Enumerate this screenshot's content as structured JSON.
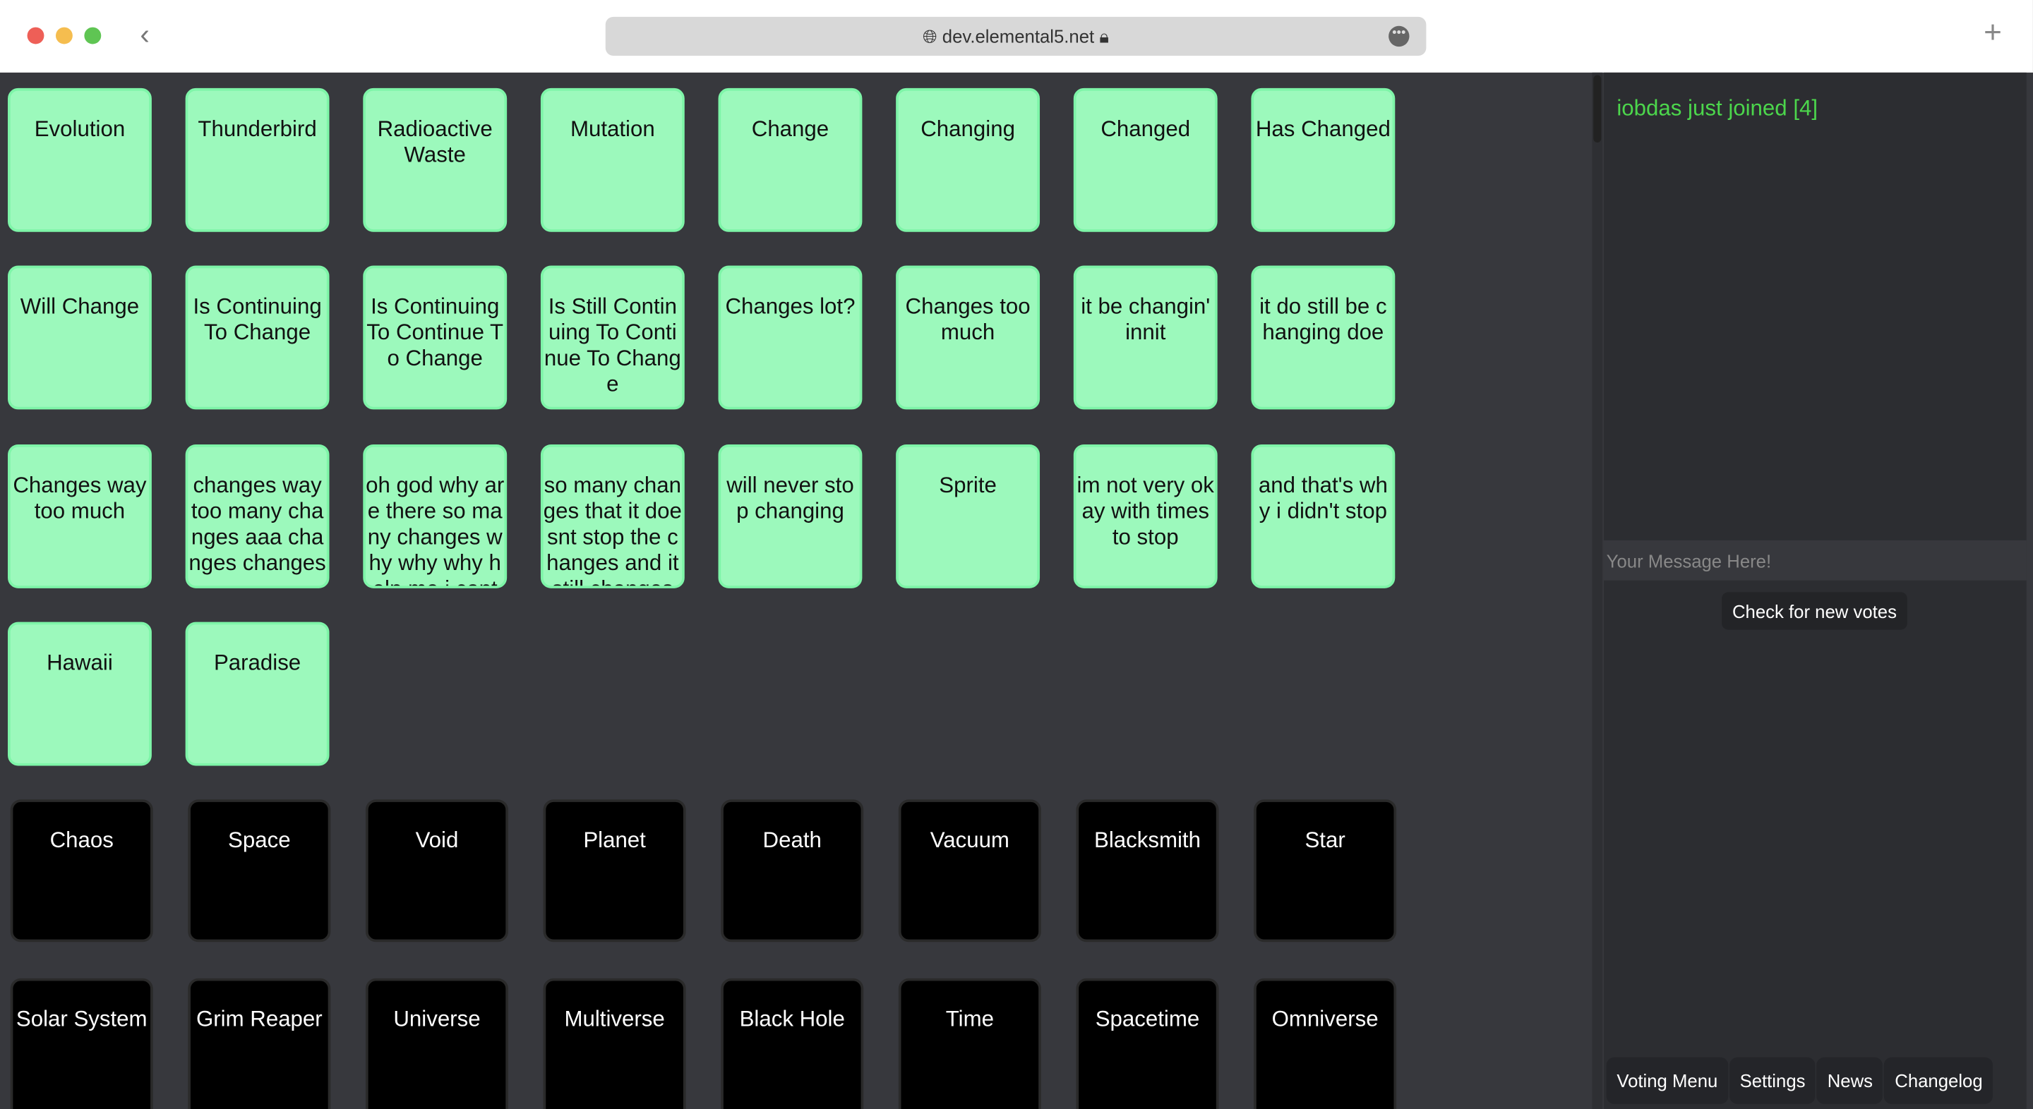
{
  "browser": {
    "url": "dev.elemental5.net",
    "colors": {
      "close": "#ee5f57",
      "minimize": "#f5bd4f",
      "maximize": "#5fc553"
    }
  },
  "elements_green": [
    "Evolution",
    "Thunderbird",
    "Radioactive Waste",
    "Mutation",
    "Change",
    "Changing",
    "Changed",
    "Has Changed",
    "Will Change",
    "Is Continuing To Change",
    "Is Continuing To Continue To Change",
    "Is Still Continuing To Continue To Change",
    "Changes lot?",
    "Changes too much",
    "it be changin' innit",
    "it do still be changing doe",
    "Changes way too much",
    "changes way too many changes aaa changes changes",
    "oh god why are there so many changes why why why help me i cant",
    "so many changes that it doesnt stop the changes and it still changes",
    "will never stop changing",
    "Sprite",
    "im not very okay with times to stop",
    "and that's why i didn't stop",
    "Hawaii",
    "Paradise"
  ],
  "elements_black": [
    "Chaos",
    "Space",
    "Void",
    "Planet",
    "Death",
    "Vacuum",
    "Blacksmith",
    "Star",
    "Solar System",
    "Grim Reaper",
    "Universe",
    "Multiverse",
    "Black Hole",
    "Time",
    "Spacetime",
    "Omniverse"
  ],
  "chat": {
    "messages": [
      "iobdas just joined [4]"
    ],
    "placeholder": "Your Message Here!",
    "check_button": "Check for new votes"
  },
  "tabs": [
    "Voting Menu",
    "Settings",
    "News",
    "Changelog"
  ],
  "colors": {
    "tile_green": "#9cf9bc",
    "tile_black": "#000000",
    "join_text": "#4cd64c",
    "background": "#37383d"
  }
}
